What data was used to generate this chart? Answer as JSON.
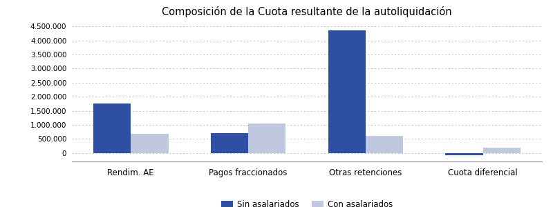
{
  "title": "Composición de la Cuota resultante de la autoliquidación",
  "categories": [
    "Rendim. AE",
    "Pagos fraccionados",
    "Otras retenciones",
    "Cuota diferencial"
  ],
  "sin_asalariados": [
    1750000,
    700000,
    4350000,
    -80000
  ],
  "con_asalariados": [
    680000,
    1050000,
    610000,
    185000
  ],
  "bar_color_sin": "#2F4FA2",
  "bar_color_con": "#C0C8E0",
  "legend_labels": [
    "Sin asalariados",
    "Con asalariados"
  ],
  "ylim": [
    -300000,
    4700000
  ],
  "yticks": [
    0,
    500000,
    1000000,
    1500000,
    2000000,
    2500000,
    3000000,
    3500000,
    4000000,
    4500000
  ],
  "background_color": "#FFFFFF",
  "grid_color": "#BBBBBB",
  "title_fontsize": 10.5,
  "bar_width": 0.32,
  "figsize": [
    8.0,
    3.0
  ],
  "dpi": 100
}
